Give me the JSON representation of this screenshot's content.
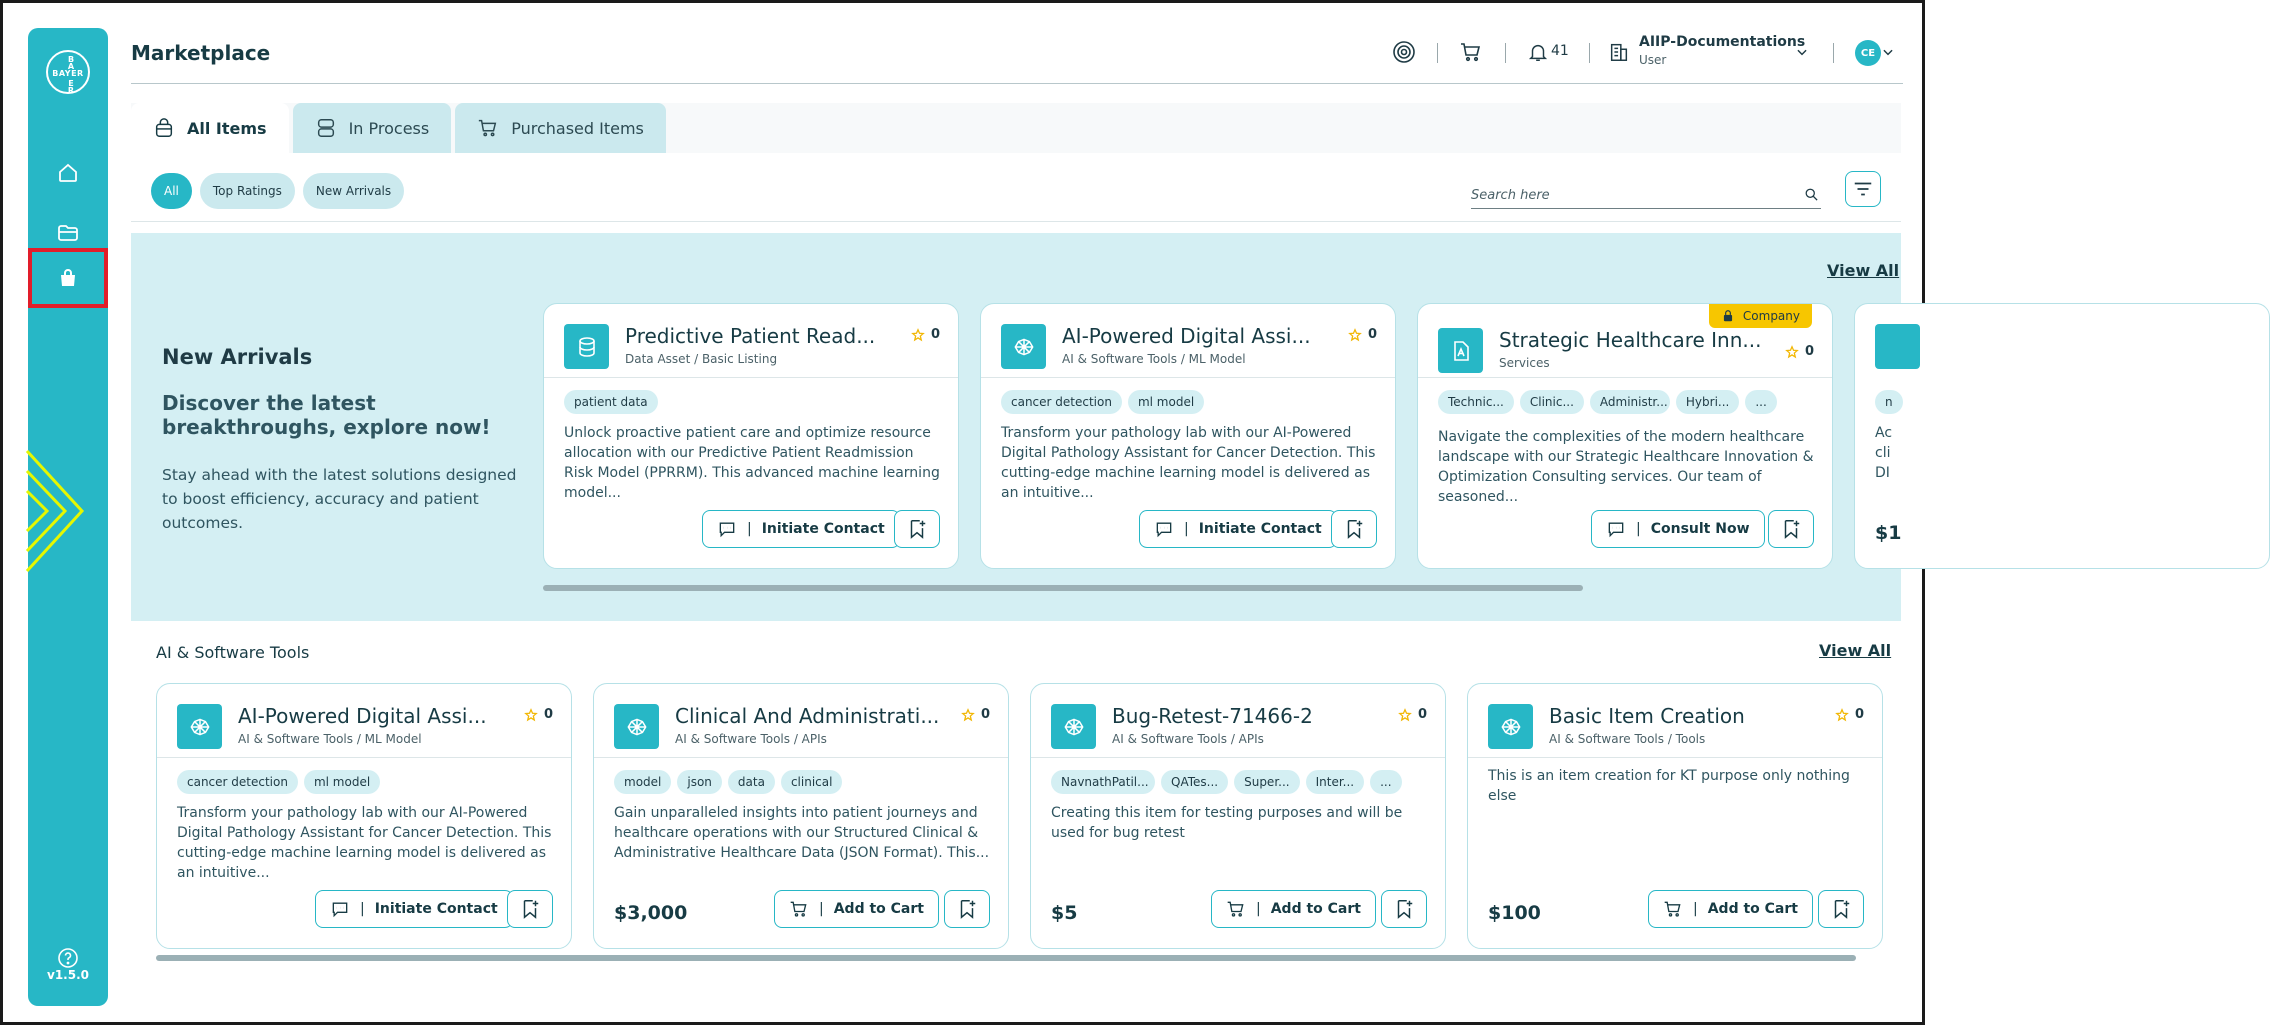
{
  "sidebar": {
    "logo_h": "BAYER",
    "logo_v_top": "B A",
    "logo_v_bottom": "E R",
    "items": [
      {
        "name": "home",
        "icon": "home-icon"
      },
      {
        "name": "folder",
        "icon": "folder-icon"
      },
      {
        "name": "marketplace",
        "icon": "shopping-bag-icon",
        "active": true
      }
    ],
    "help_icon": "help-icon",
    "version": "v1.5.0"
  },
  "header": {
    "title": "Marketplace",
    "notifications_count": "41",
    "workspace_name": "AIIP-Documentations",
    "workspace_role": "User",
    "avatar_initials": "CE"
  },
  "tabs": [
    {
      "label": "All Items",
      "icon": "bag-icon",
      "active": true
    },
    {
      "label": "In Process",
      "icon": "server-icon",
      "active": false
    },
    {
      "label": "Purchased Items",
      "icon": "cart-icon",
      "active": false
    }
  ],
  "filters": [
    "All",
    "Top Ratings",
    "New Arrivals"
  ],
  "search": {
    "placeholder": "Search here"
  },
  "new_arrivals": {
    "heading": "New Arrivals",
    "subheading": "Discover the latest breakthroughs, explore now!",
    "text": "Stay ahead with the latest solutions designed to boost efficiency, accuracy and patient outcomes.",
    "view_all": "View All",
    "cards": [
      {
        "title": "Predictive Patient Read...",
        "category": "Data Asset / Basic Listing",
        "rating": "0",
        "icon": "database-icon",
        "tags": [
          "patient data"
        ],
        "description": "Unlock proactive patient care and optimize resource allocation with our Predictive Patient Readmission Risk Model (PPRRM). This advanced machine learning model...",
        "action": "Initiate Contact"
      },
      {
        "title": "AI-Powered Digital Assi...",
        "category": "AI & Software Tools / ML Model",
        "rating": "0",
        "icon": "brain-icon",
        "tags": [
          "cancer detection",
          "ml model"
        ],
        "description": "Transform your pathology lab with our AI-Powered Digital Pathology Assistant for Cancer Detection. This cutting-edge machine learning model is delivered as an intuitive...",
        "action": "Initiate Contact"
      },
      {
        "title": "Strategic Healthcare Inn...",
        "category": "Services",
        "rating": "0",
        "icon": "document-icon",
        "badge": "Company",
        "tags": [
          "Technic...",
          "Clinic...",
          "Administr...",
          "Hybri...",
          "..."
        ],
        "description": "Navigate the complexities of the modern healthcare landscape with our Strategic Healthcare Innovation & Optimization Consulting services. Our team of seasoned...",
        "action": "Consult Now"
      }
    ],
    "partial_card": {
      "tag": "n",
      "desc": "Ac cli DI",
      "price": "$1"
    }
  },
  "ai_tools": {
    "heading": "AI & Software Tools",
    "view_all": "View All",
    "cards": [
      {
        "title": "AI-Powered Digital Assi...",
        "category": "AI & Software Tools / ML Model",
        "rating": "0",
        "tags": [
          "cancer detection",
          "ml model"
        ],
        "description": "Transform your pathology lab with our AI-Powered Digital Pathology Assistant for Cancer Detection. This cutting-edge machine learning model is delivered as an intuitive...",
        "price": "",
        "action": "Initiate Contact"
      },
      {
        "title": "Clinical And Administrati...",
        "category": "AI & Software Tools / APIs",
        "rating": "0",
        "tags": [
          "model",
          "json",
          "data",
          "clinical"
        ],
        "description": "Gain unparalleled insights into patient journeys and healthcare operations with our Structured Clinical & Administrative Healthcare Data (JSON Format). This...",
        "price": "$3,000",
        "action": "Add to Cart"
      },
      {
        "title": "Bug-Retest-71466-2",
        "category": "AI & Software Tools / APIs",
        "rating": "0",
        "tags": [
          "NavnathPatil...",
          "QATes...",
          "Super...",
          "Inter...",
          "..."
        ],
        "description": "Creating this item for testing purposes and will be used for bug retest",
        "price": "$5",
        "action": "Add to Cart"
      },
      {
        "title": "Basic Item Creation",
        "category": "AI & Software Tools / Tools",
        "rating": "0",
        "tags": [],
        "description": "This is an item creation for KT purpose only nothing else",
        "price": "$100",
        "action": "Add to Cart"
      }
    ]
  },
  "colors": {
    "accent": "#27b7c6",
    "band": "#d4eff3",
    "badge": "#f7c600",
    "highlight": "#e11d2a"
  }
}
